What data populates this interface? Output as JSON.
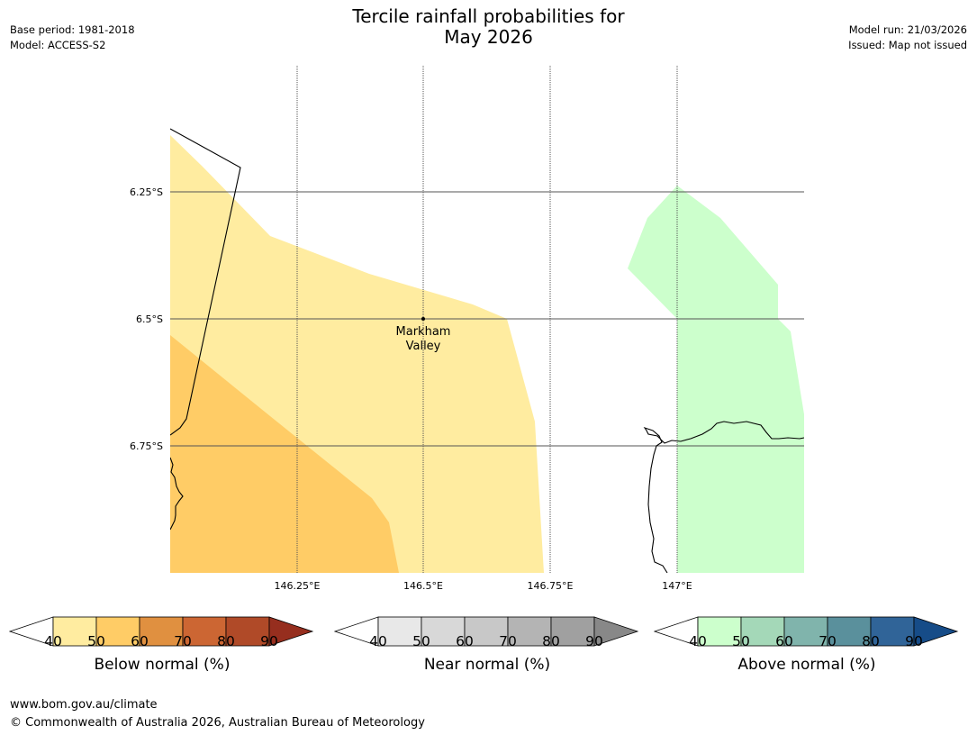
{
  "header": {
    "title_line1": "Tercile rainfall probabilities for",
    "title_line2": "May 2026",
    "base_period": "Base period: 1981-2018",
    "model": "Model: ACCESS-S2",
    "model_run": "Model run: 21/03/2026",
    "issued": "Issued: Map not issued"
  },
  "map": {
    "lat_labels": [
      "6.25°S",
      "6.5°S",
      "6.75°S"
    ],
    "lon_labels": [
      "146.25°E",
      "146.5°E",
      "146.75°E",
      "147°E"
    ],
    "place_marker": {
      "name_line1": "Markham",
      "name_line2": "Valley"
    },
    "colors": {
      "below_40_50": "#ffeca0",
      "below_50_60": "#ffcc66",
      "above_40_50": "#ccffcc",
      "gridline": "#555555",
      "coastline": "#000000"
    }
  },
  "legends": [
    {
      "id": "below",
      "title": "Below normal (%)",
      "ticks": [
        "40",
        "50",
        "60",
        "70",
        "80",
        "90"
      ],
      "colors": [
        "#ffeca0",
        "#ffcc66",
        "#e09040",
        "#cc6633",
        "#b04a28",
        "#962e1e"
      ]
    },
    {
      "id": "near",
      "title": "Near normal (%)",
      "ticks": [
        "40",
        "50",
        "60",
        "70",
        "80",
        "90"
      ],
      "colors": [
        "#e8e8e8",
        "#d8d8d8",
        "#c8c8c8",
        "#b4b4b4",
        "#a0a0a0",
        "#888888"
      ]
    },
    {
      "id": "above",
      "title": "Above normal (%)",
      "ticks": [
        "40",
        "50",
        "60",
        "70",
        "80",
        "90"
      ],
      "colors": [
        "#ccffcc",
        "#a4d8b8",
        "#80b4ac",
        "#5a909c",
        "#306498",
        "#164c88"
      ]
    }
  ],
  "footer": {
    "url": "www.bom.gov.au/climate",
    "copyright": "© Commonwealth of Australia 2026, Australian Bureau of Meteorology"
  }
}
